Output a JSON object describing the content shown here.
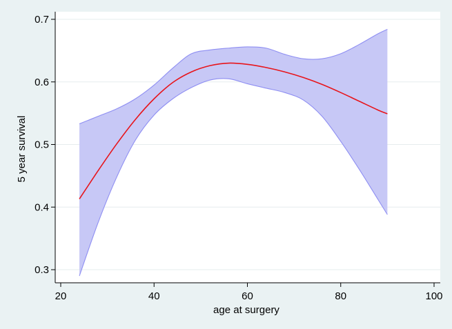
{
  "chart_data": {
    "type": "line",
    "title": "",
    "xlabel": "age at surgery",
    "ylabel": "5 year survival",
    "xlim": [
      20,
      100
    ],
    "ylim": [
      0.3,
      0.7
    ],
    "x_ticks": [
      20,
      40,
      60,
      80,
      100
    ],
    "y_ticks": [
      0.3,
      0.4,
      0.5,
      0.6,
      0.7
    ],
    "x_tick_labels": [
      "20",
      "40",
      "60",
      "80",
      "100"
    ],
    "y_tick_labels": [
      "0.3",
      "0.4",
      "0.5",
      "0.6",
      "0.7"
    ],
    "grid": true,
    "legend": "none",
    "colors": {
      "line": "#e8141a",
      "band_fill": "#c7c8f6",
      "band_edge": "#8e8ef2",
      "plot_bg": "#ffffff",
      "page_bg": "#eaf2f3",
      "grid": "#e6ecee"
    },
    "series": [
      {
        "x": [
          24,
          28,
          32,
          36,
          40,
          44,
          48,
          52,
          56,
          60,
          64,
          68,
          72,
          76,
          80,
          84,
          88,
          90
        ],
        "values": [
          0.413,
          0.458,
          0.501,
          0.54,
          0.573,
          0.599,
          0.616,
          0.626,
          0.63,
          0.628,
          0.623,
          0.616,
          0.607,
          0.596,
          0.583,
          0.569,
          0.555,
          0.549
        ],
        "lower": [
          0.29,
          0.375,
          0.448,
          0.507,
          0.547,
          0.573,
          0.591,
          0.603,
          0.605,
          0.597,
          0.59,
          0.583,
          0.571,
          0.545,
          0.505,
          0.46,
          0.412,
          0.388
        ],
        "upper": [
          0.533,
          0.545,
          0.557,
          0.573,
          0.595,
          0.622,
          0.645,
          0.651,
          0.654,
          0.656,
          0.654,
          0.644,
          0.637,
          0.637,
          0.645,
          0.66,
          0.677,
          0.684
        ]
      }
    ]
  }
}
